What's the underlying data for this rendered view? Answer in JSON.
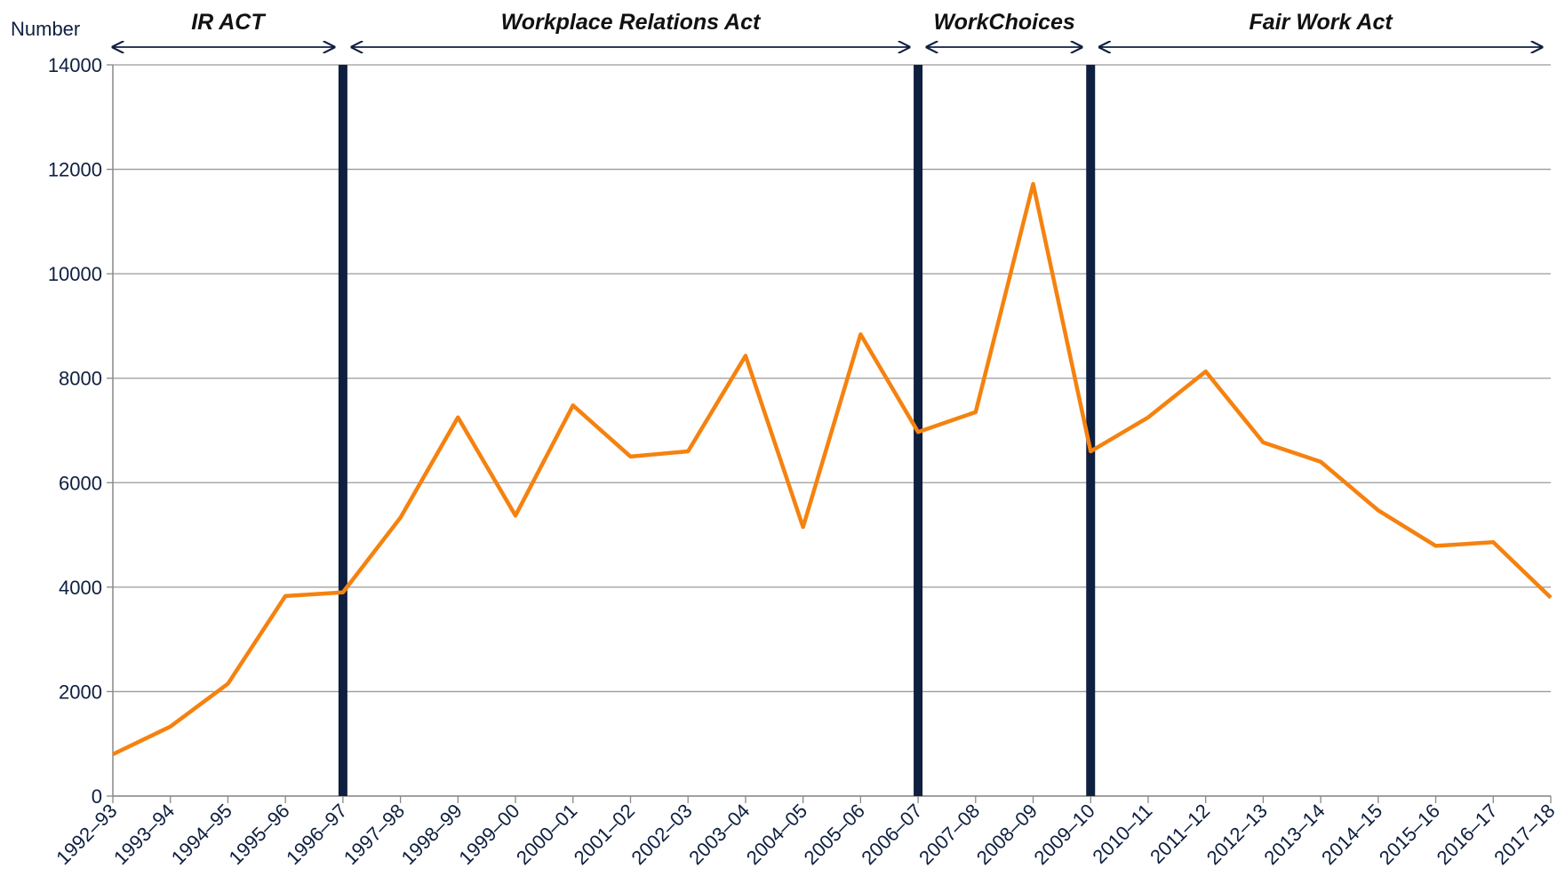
{
  "chart_data": {
    "type": "line",
    "y_axis_label": "Number",
    "categories": [
      "1992–93",
      "1993–94",
      "1994–95",
      "1995–96",
      "1996–97",
      "1997–98",
      "1998–99",
      "1999–00",
      "2000–01",
      "2001–02",
      "2002–03",
      "2003–04",
      "2004–05",
      "2005–06",
      "2006–07",
      "2007–08",
      "2008–09",
      "2009–10",
      "2010–11",
      "2011–12",
      "2012–13",
      "2013–14",
      "2014–15",
      "2015–16",
      "2016–17",
      "2017–18"
    ],
    "series": [
      {
        "color": "#f5820f",
        "values": [
          800,
          1330,
          2150,
          3830,
          3900,
          5330,
          7250,
          5370,
          7480,
          6500,
          6600,
          8430,
          5150,
          8840,
          6970,
          7350,
          11720,
          6600,
          7250,
          8130,
          6770,
          6400,
          5470,
          4790,
          4860,
          3800
        ]
      }
    ],
    "ylim": [
      0,
      14000
    ],
    "yticks": [
      0,
      2000,
      4000,
      6000,
      8000,
      10000,
      12000,
      14000
    ],
    "grid": true,
    "dividers": [
      "1996–97",
      "2006–07",
      "2009–10"
    ],
    "divider_color": "#0e1f40",
    "periods": [
      {
        "label": "IR ACT",
        "start": "1992–93",
        "end": "1996–97"
      },
      {
        "label": "Workplace Relations Act",
        "start": "1996–97",
        "end": "2006–07"
      },
      {
        "label": "WorkChoices",
        "start": "2006–07",
        "end": "2009–10"
      },
      {
        "label": "Fair Work Act",
        "start": "2009–10",
        "end": "2017–18"
      }
    ]
  }
}
